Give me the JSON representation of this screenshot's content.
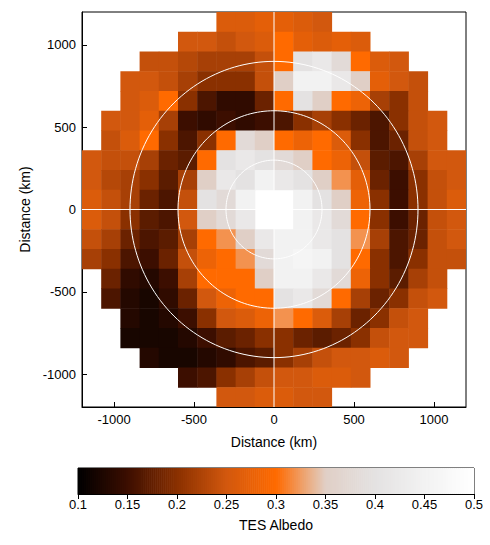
{
  "chart_data": {
    "type": "heatmap",
    "xlabel": "Distance (km)",
    "ylabel": "Distance (km)",
    "xlim": [
      -1200,
      1200
    ],
    "ylim": [
      -1200,
      1200
    ],
    "xticks": [
      -1000,
      -500,
      0,
      500,
      1000
    ],
    "yticks": [
      -1000,
      -500,
      0,
      500,
      1000
    ],
    "x": [
      -1140,
      -1020,
      -900,
      -780,
      -660,
      -540,
      -420,
      -300,
      -180,
      -60,
      60,
      180,
      300,
      420,
      540,
      660,
      780,
      900,
      1020,
      1140
    ],
    "y": [
      1140,
      1020,
      900,
      780,
      660,
      540,
      420,
      300,
      180,
      60,
      -60,
      -180,
      -300,
      -420,
      -540,
      -660,
      -780,
      -900,
      -1020,
      -1140
    ],
    "z": [
      [
        null,
        null,
        null,
        null,
        null,
        null,
        null,
        0.26,
        0.26,
        0.27,
        0.27,
        0.26,
        0.25,
        null,
        null,
        null,
        null,
        null,
        null,
        null
      ],
      [
        null,
        null,
        null,
        null,
        null,
        0.25,
        0.25,
        0.24,
        0.25,
        0.26,
        0.3,
        0.27,
        0.26,
        0.27,
        0.26,
        null,
        null,
        null,
        null,
        null
      ],
      [
        null,
        null,
        null,
        0.24,
        0.24,
        0.23,
        0.22,
        0.22,
        0.22,
        0.24,
        0.3,
        0.4,
        0.42,
        0.38,
        0.3,
        0.26,
        0.25,
        null,
        null,
        null
      ],
      [
        null,
        null,
        0.25,
        0.25,
        0.24,
        0.22,
        0.2,
        0.2,
        0.2,
        0.24,
        0.35,
        0.45,
        0.45,
        0.42,
        0.35,
        0.27,
        0.25,
        0.24,
        null,
        null
      ],
      [
        null,
        null,
        0.25,
        0.26,
        0.3,
        0.2,
        0.16,
        0.14,
        0.14,
        0.18,
        0.3,
        0.4,
        0.35,
        0.3,
        0.28,
        0.22,
        0.2,
        0.24,
        null,
        null
      ],
      [
        null,
        0.25,
        0.25,
        0.27,
        0.22,
        0.15,
        0.14,
        0.15,
        0.14,
        0.15,
        0.16,
        0.2,
        0.22,
        0.2,
        0.18,
        0.16,
        0.2,
        0.24,
        0.25,
        null
      ],
      [
        null,
        0.24,
        0.26,
        0.3,
        0.2,
        0.16,
        0.2,
        0.3,
        0.38,
        0.35,
        0.3,
        0.28,
        0.3,
        0.26,
        0.2,
        0.16,
        0.18,
        0.24,
        0.25,
        null
      ],
      [
        0.25,
        0.24,
        0.24,
        0.22,
        0.18,
        0.17,
        0.3,
        0.4,
        0.42,
        0.4,
        0.38,
        0.35,
        0.3,
        0.28,
        0.24,
        0.17,
        0.16,
        0.22,
        0.25,
        0.25
      ],
      [
        0.25,
        0.23,
        0.22,
        0.2,
        0.17,
        0.22,
        0.35,
        0.42,
        0.4,
        0.45,
        0.42,
        0.4,
        0.35,
        0.32,
        0.27,
        0.18,
        0.15,
        0.2,
        0.24,
        0.25
      ],
      [
        0.26,
        0.24,
        0.22,
        0.18,
        0.16,
        0.24,
        0.4,
        0.38,
        0.45,
        null,
        null,
        0.45,
        0.4,
        0.35,
        0.28,
        0.2,
        0.15,
        0.2,
        0.24,
        0.26
      ],
      [
        0.26,
        0.24,
        0.2,
        0.17,
        0.16,
        0.25,
        0.35,
        0.38,
        0.42,
        null,
        null,
        0.45,
        0.42,
        0.38,
        0.3,
        0.2,
        0.15,
        0.18,
        0.24,
        0.25
      ],
      [
        0.24,
        0.22,
        0.18,
        0.16,
        0.17,
        0.22,
        0.3,
        0.32,
        0.35,
        0.42,
        0.45,
        0.45,
        0.42,
        0.4,
        0.32,
        0.22,
        0.16,
        0.18,
        0.24,
        0.25
      ],
      [
        0.22,
        0.2,
        0.16,
        0.15,
        0.18,
        0.24,
        0.28,
        0.3,
        0.32,
        0.38,
        0.45,
        0.46,
        0.45,
        0.4,
        0.3,
        0.2,
        0.16,
        0.2,
        0.24,
        0.24
      ],
      [
        null,
        0.18,
        0.14,
        0.13,
        0.15,
        0.22,
        0.3,
        0.3,
        0.3,
        0.35,
        0.45,
        0.45,
        0.42,
        0.38,
        0.28,
        0.2,
        0.17,
        0.22,
        0.24,
        null
      ],
      [
        null,
        0.16,
        0.13,
        0.12,
        0.14,
        0.18,
        0.25,
        0.28,
        0.3,
        0.3,
        0.4,
        0.42,
        0.38,
        0.3,
        0.22,
        0.18,
        0.2,
        0.24,
        0.25,
        null
      ],
      [
        null,
        null,
        0.13,
        0.12,
        0.13,
        0.15,
        0.2,
        0.25,
        0.26,
        0.28,
        0.32,
        0.3,
        0.26,
        0.22,
        0.18,
        0.2,
        0.24,
        0.25,
        null,
        null
      ],
      [
        null,
        null,
        0.12,
        0.12,
        0.12,
        0.13,
        0.15,
        0.17,
        0.18,
        0.2,
        0.2,
        0.18,
        0.17,
        0.18,
        0.2,
        0.24,
        0.25,
        0.25,
        null,
        null
      ],
      [
        null,
        null,
        null,
        0.13,
        0.12,
        0.12,
        0.13,
        0.14,
        0.16,
        0.17,
        0.2,
        0.22,
        0.24,
        0.25,
        0.25,
        0.26,
        0.25,
        null,
        null,
        null
      ],
      [
        null,
        null,
        null,
        null,
        null,
        0.15,
        0.16,
        0.2,
        0.22,
        0.24,
        0.25,
        0.25,
        0.26,
        0.26,
        0.25,
        null,
        null,
        null,
        null,
        null
      ],
      [
        null,
        null,
        null,
        null,
        null,
        null,
        null,
        0.25,
        0.25,
        0.26,
        0.26,
        0.25,
        0.25,
        null,
        null,
        null,
        null,
        null,
        null,
        null
      ]
    ],
    "rings": [
      300,
      600,
      900
    ],
    "lines_x": [
      0
    ],
    "lines_y": [
      0
    ],
    "colorbar_lim": [
      0.1,
      0.5
    ],
    "colorbar_ticks": [
      0.1,
      0.15,
      0.2,
      0.25,
      0.3,
      0.35,
      0.4,
      0.45,
      0.5
    ],
    "colorbar_label": "TES Albedo"
  }
}
